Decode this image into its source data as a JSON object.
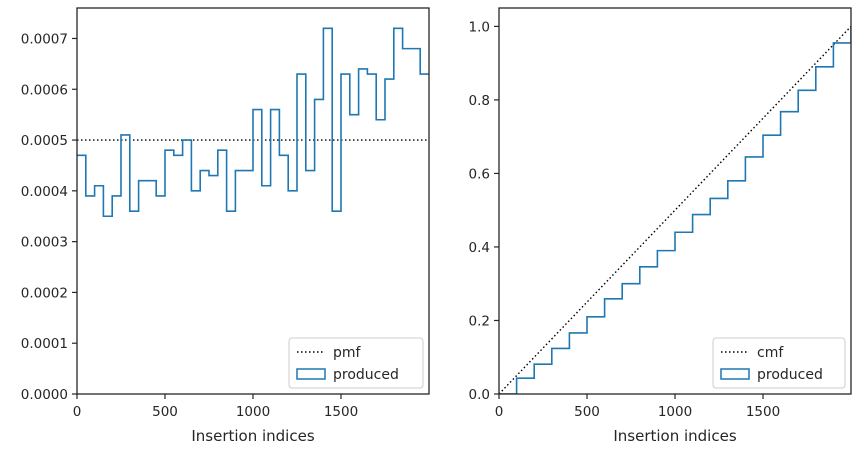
{
  "chart_data": [
    {
      "type": "line",
      "subtype": "step-histogram",
      "title": "",
      "xlabel": "Insertion indices",
      "ylabel": "",
      "xlim": [
        0,
        2000
      ],
      "ylim": [
        0,
        0.00076
      ],
      "xticks": [
        0,
        500,
        1000,
        1500
      ],
      "xtick_labels": [
        "0",
        "500",
        "1000",
        "1500"
      ],
      "yticks": [
        0,
        0.0001,
        0.0002,
        0.0003,
        0.0004,
        0.0005,
        0.0006,
        0.0007
      ],
      "ytick_labels": [
        "0.0000",
        "0.0001",
        "0.0002",
        "0.0003",
        "0.0004",
        "0.0005",
        "0.0006",
        "0.0007"
      ],
      "grid": false,
      "legend_position": "lower-right",
      "series": [
        {
          "name": "pmf",
          "style": "dotted",
          "color": "#000000",
          "x": [
            0,
            2000
          ],
          "y": [
            0.0005,
            0.0005
          ]
        },
        {
          "name": "produced",
          "style": "step",
          "color": "#1f77b4",
          "bin_edges": [
            0,
            50,
            100,
            150,
            200,
            250,
            300,
            350,
            400,
            450,
            500,
            550,
            600,
            650,
            700,
            750,
            800,
            850,
            900,
            950,
            1000,
            1050,
            1100,
            1150,
            1200,
            1250,
            1300,
            1350,
            1400,
            1450,
            1500,
            1550,
            1600,
            1650,
            1700,
            1750,
            1800,
            1850,
            1900,
            1950,
            2000
          ],
          "values": [
            0.00047,
            0.00039,
            0.00041,
            0.00035,
            0.00039,
            0.00051,
            0.00036,
            0.00042,
            0.00042,
            0.00039,
            0.00048,
            0.00047,
            0.0005,
            0.0004,
            0.00044,
            0.00043,
            0.00048,
            0.00036,
            0.00044,
            0.00044,
            0.00056,
            0.00041,
            0.00056,
            0.00047,
            0.0004,
            0.00063,
            0.00044,
            0.00058,
            0.00072,
            0.00036,
            0.00063,
            0.00055,
            0.00064,
            0.00063,
            0.00054,
            0.00062,
            0.00072,
            0.00068,
            0.00068,
            0.00063
          ]
        }
      ],
      "legend": [
        "pmf",
        "produced"
      ]
    },
    {
      "type": "line",
      "subtype": "cumulative-step",
      "title": "",
      "xlabel": "Insertion indices",
      "ylabel": "",
      "xlim": [
        0,
        2000
      ],
      "ylim": [
        0,
        1.05
      ],
      "xticks": [
        0,
        500,
        1000,
        1500
      ],
      "xtick_labels": [
        "0",
        "500",
        "1000",
        "1500"
      ],
      "yticks": [
        0,
        0.2,
        0.4,
        0.6,
        0.8,
        1.0
      ],
      "ytick_labels": [
        "0.0",
        "0.2",
        "0.4",
        "0.6",
        "0.8",
        "1.0"
      ],
      "grid": false,
      "legend_position": "lower-right",
      "series": [
        {
          "name": "cmf",
          "style": "dotted",
          "color": "#000000",
          "x": [
            0,
            2000
          ],
          "y": [
            0,
            1
          ]
        },
        {
          "name": "produced",
          "style": "step",
          "color": "#1f77b4",
          "x": [
            0,
            100,
            200,
            300,
            400,
            500,
            600,
            700,
            800,
            900,
            1000,
            1100,
            1200,
            1300,
            1400,
            1500,
            1600,
            1700,
            1800,
            1900,
            2000
          ],
          "y": [
            0,
            0.043,
            0.081,
            0.124,
            0.166,
            0.21,
            0.259,
            0.3,
            0.346,
            0.39,
            0.44,
            0.488,
            0.532,
            0.58,
            0.645,
            0.704,
            0.768,
            0.826,
            0.89,
            0.955,
            1.0
          ]
        }
      ],
      "legend": [
        "cmf",
        "produced"
      ]
    }
  ]
}
